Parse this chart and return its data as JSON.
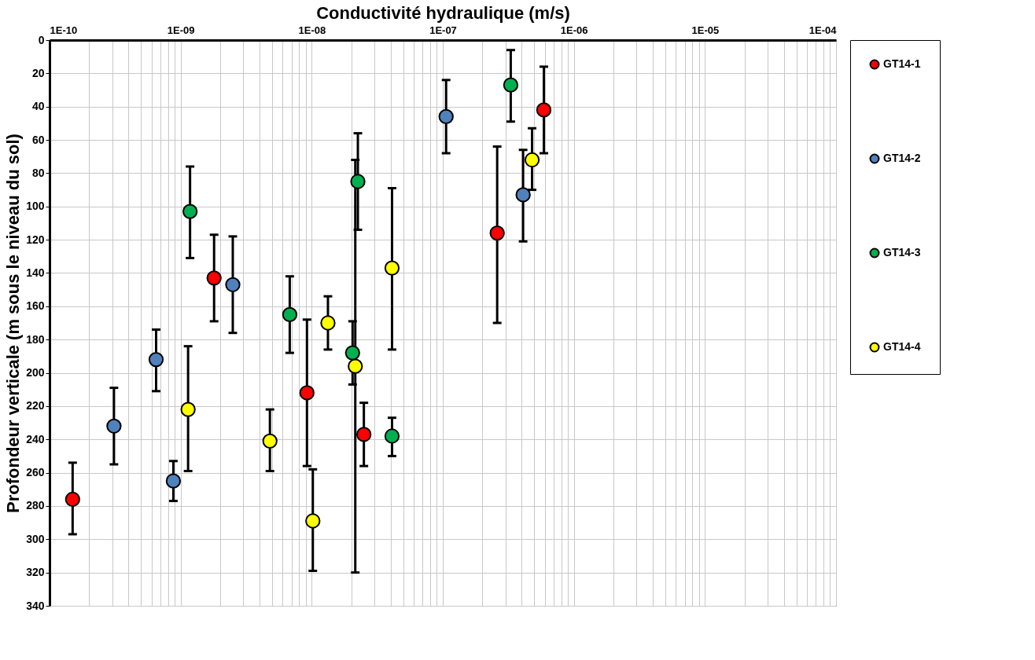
{
  "chart_data": {
    "type": "scatter",
    "xlabel": "Conductivité hydraulique (m/s)",
    "ylabel": "Profondeur verticale (m sous le niveau du sol)",
    "log": "x",
    "xlim": [
      1e-10,
      0.0001
    ],
    "ylim": [
      340,
      0
    ],
    "xticks": [
      {
        "value": 1e-10,
        "label": "1E-10"
      },
      {
        "value": 2e-10,
        "label": null
      },
      {
        "value": 3e-10,
        "label": null
      },
      {
        "value": 4e-10,
        "label": null
      },
      {
        "value": 5e-10,
        "label": null
      },
      {
        "value": 6e-10,
        "label": null
      },
      {
        "value": 7e-10,
        "label": null
      },
      {
        "value": 8e-10,
        "label": null
      },
      {
        "value": 9e-10,
        "label": null
      },
      {
        "value": 1e-09,
        "label": "1E-09"
      },
      {
        "value": 2e-09,
        "label": null
      },
      {
        "value": 3e-09,
        "label": null
      },
      {
        "value": 4e-09,
        "label": null
      },
      {
        "value": 5e-09,
        "label": null
      },
      {
        "value": 6e-09,
        "label": null
      },
      {
        "value": 7e-09,
        "label": null
      },
      {
        "value": 8e-09,
        "label": null
      },
      {
        "value": 9e-09,
        "label": null
      },
      {
        "value": 1e-08,
        "label": "1E-08"
      },
      {
        "value": 2e-08,
        "label": null
      },
      {
        "value": 3e-08,
        "label": null
      },
      {
        "value": 4e-08,
        "label": null
      },
      {
        "value": 5e-08,
        "label": null
      },
      {
        "value": 6e-08,
        "label": null
      },
      {
        "value": 7e-08,
        "label": null
      },
      {
        "value": 8e-08,
        "label": null
      },
      {
        "value": 9e-08,
        "label": null
      },
      {
        "value": 1e-07,
        "label": "1E-07"
      },
      {
        "value": 2e-07,
        "label": null
      },
      {
        "value": 3e-07,
        "label": null
      },
      {
        "value": 4e-07,
        "label": null
      },
      {
        "value": 5e-07,
        "label": null
      },
      {
        "value": 6e-07,
        "label": null
      },
      {
        "value": 7e-07,
        "label": null
      },
      {
        "value": 8e-07,
        "label": null
      },
      {
        "value": 9e-07,
        "label": null
      },
      {
        "value": 1e-06,
        "label": "1E-06"
      },
      {
        "value": 2e-06,
        "label": null
      },
      {
        "value": 3e-06,
        "label": null
      },
      {
        "value": 4e-06,
        "label": null
      },
      {
        "value": 5e-06,
        "label": null
      },
      {
        "value": 6e-06,
        "label": null
      },
      {
        "value": 7e-06,
        "label": null
      },
      {
        "value": 8e-06,
        "label": null
      },
      {
        "value": 9e-06,
        "label": null
      },
      {
        "value": 1e-05,
        "label": "1E-05"
      },
      {
        "value": 2e-05,
        "label": null
      },
      {
        "value": 3e-05,
        "label": null
      },
      {
        "value": 4e-05,
        "label": null
      },
      {
        "value": 5e-05,
        "label": null
      },
      {
        "value": 6e-05,
        "label": null
      },
      {
        "value": 7e-05,
        "label": null
      },
      {
        "value": 8e-05,
        "label": null
      },
      {
        "value": 9e-05,
        "label": null
      },
      {
        "value": 0.0001,
        "label": "1E-04"
      }
    ],
    "yticks": [
      0,
      20,
      40,
      60,
      80,
      100,
      120,
      140,
      160,
      180,
      200,
      220,
      240,
      260,
      280,
      300,
      320,
      340
    ],
    "grid": true,
    "legend": "right",
    "marker": "circle",
    "series": [
      {
        "name": "GT14-1",
        "color": "#ff0000",
        "x": [
          1.5e-10,
          1.8e-09,
          9.2e-09,
          2.5e-08,
          2.6e-07,
          5.9e-07
        ],
        "values": [
          276,
          143,
          212,
          237,
          116,
          42
        ],
        "errors": [
          [
            254,
            297
          ],
          [
            117,
            169
          ],
          [
            168,
            256
          ],
          [
            218,
            256
          ],
          [
            64,
            170
          ],
          [
            16,
            68
          ]
        ]
      },
      {
        "name": "GT14-2",
        "color": "#4f81bd",
        "x": [
          3.1e-10,
          6.5e-10,
          8.8e-10,
          2.5e-09,
          1.06e-07,
          4.1e-07
        ],
        "values": [
          232,
          192,
          265,
          147,
          46,
          93
        ],
        "errors": [
          [
            209,
            255
          ],
          [
            174,
            211
          ],
          [
            253,
            277
          ],
          [
            118,
            176
          ],
          [
            24,
            68
          ],
          [
            66,
            121
          ]
        ]
      },
      {
        "name": "GT14-3",
        "color": "#00b050",
        "x": [
          1.18e-09,
          6.8e-09,
          2.25e-08,
          2.05e-08,
          4.1e-08,
          3.3e-07
        ],
        "values": [
          103,
          165,
          85,
          188,
          238,
          27
        ],
        "errors": [
          [
            76,
            131
          ],
          [
            142,
            188
          ],
          [
            56,
            114
          ],
          [
            169,
            207
          ],
          [
            227,
            250
          ],
          [
            6,
            49
          ]
        ]
      },
      {
        "name": "GT14-4",
        "color": "#ffff00",
        "x": [
          1.14e-09,
          4.8e-09,
          1.02e-08,
          1.33e-08,
          2.15e-08,
          4.1e-08,
          4.8e-07
        ],
        "values": [
          222,
          241,
          289,
          170,
          196,
          137,
          72
        ],
        "errors": [
          [
            184,
            259
          ],
          [
            222,
            259
          ],
          [
            258,
            319
          ],
          [
            154,
            186
          ],
          [
            72,
            320
          ],
          [
            89,
            186
          ],
          [
            53,
            90
          ]
        ]
      }
    ]
  }
}
